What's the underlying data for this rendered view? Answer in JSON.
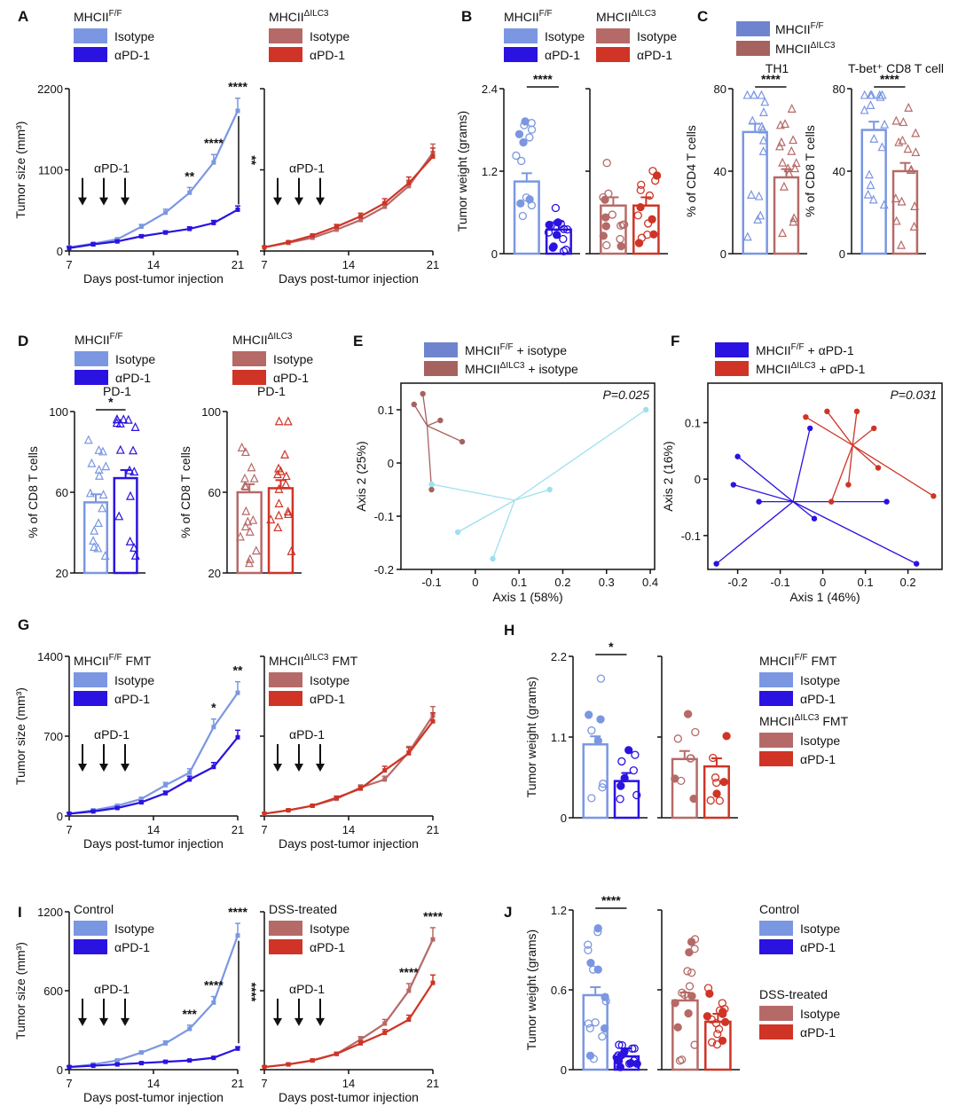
{
  "colors": {
    "fIso": "#7b97e2",
    "fPd": "#2a12e0",
    "iIso": "#b56a68",
    "iPd": "#cf3426",
    "cyan": "#9ee0f0",
    "fIsoC": "#6f84cf",
    "iIsoC": "#a6625f"
  },
  "legends": {
    "A1": {
      "title": "MHCII",
      "sup": "F/F",
      "items": [
        "Isotype",
        "αPD-1"
      ]
    },
    "A2": {
      "title": "MHCII",
      "sup": "ΔILC3",
      "items": [
        "Isotype",
        "αPD-1"
      ]
    },
    "B1": {
      "title": "MHCII",
      "sup": "F/F",
      "items": [
        "Isotype",
        "αPD-1"
      ]
    },
    "B2": {
      "title": "MHCII",
      "sup": "ΔILC3",
      "items": [
        "Isotype",
        "αPD-1"
      ]
    },
    "C": {
      "items": [
        "MHCII",
        "MHCII"
      ],
      "sups": [
        "F/F",
        "ΔILC3"
      ]
    },
    "D1": {
      "title": "MHCII",
      "sup": "F/F",
      "items": [
        "Isotype",
        "αPD-1"
      ]
    },
    "D2": {
      "title": "MHCII",
      "sup": "ΔILC3",
      "items": [
        "Isotype",
        "αPD-1"
      ]
    },
    "E": {
      "items": [
        "MHCII",
        "MHCII"
      ],
      "sups": [
        "F/F",
        "ΔILC3"
      ],
      "suffix": " + isotype"
    },
    "F": {
      "items": [
        "MHCII",
        "MHCII"
      ],
      "sups": [
        "F/F",
        "ΔILC3"
      ],
      "suffix": " + αPD-1"
    },
    "G1": {
      "title": "MHCII",
      "sup": "F/F",
      "post": " FMT",
      "items": [
        "Isotype",
        "αPD-1"
      ]
    },
    "G2": {
      "title": "MHCII",
      "sup": "ΔILC3",
      "post": " FMT",
      "items": [
        "Isotype",
        "αPD-1"
      ]
    },
    "H1": {
      "title": "MHCII",
      "sup": "F/F",
      "post": " FMT",
      "items": [
        "Isotype",
        "αPD-1"
      ]
    },
    "H2": {
      "title": "MHCII",
      "sup": "ΔILC3",
      "post": " FMT",
      "items": [
        "Isotype",
        "αPD-1"
      ]
    },
    "I1": {
      "title": "Control",
      "items": [
        "Isotype",
        "αPD-1"
      ]
    },
    "I2": {
      "title": "DSS-treated",
      "items": [
        "Isotype",
        "αPD-1"
      ]
    },
    "J1": {
      "title": "Control",
      "items": [
        "Isotype",
        "αPD-1"
      ]
    },
    "J2": {
      "title": "DSS-treated",
      "items": [
        "Isotype",
        "αPD-1"
      ]
    }
  },
  "chart_data": [
    {
      "panel": "A",
      "type": "line",
      "ylabel": "Tumor size (mm³)",
      "xlabel": "Days post-tumor injection",
      "ylim": [
        0,
        2200
      ],
      "yticks": [
        0,
        1100,
        2200
      ],
      "xticks": [
        7,
        14,
        21
      ],
      "arrow_label": "αPD-1",
      "subplots": [
        {
          "series": [
            {
              "name": "Isotype",
              "x": [
                7,
                9,
                11,
                13,
                15,
                17,
                19,
                21
              ],
              "y": [
                50,
                100,
                160,
                330,
                520,
                790,
                1200,
                1900
              ]
            },
            {
              "name": "αPD-1",
              "x": [
                7,
                9,
                11,
                13,
                15,
                17,
                19,
                21
              ],
              "y": [
                40,
                90,
                130,
                200,
                250,
                300,
                380,
                560
              ]
            }
          ],
          "stars": [
            {
              "x": 17,
              "text": "**"
            },
            {
              "x": 19,
              "text": "****"
            },
            {
              "x": 21,
              "text": "****"
            }
          ],
          "bracket": "**"
        },
        {
          "series": [
            {
              "name": "Isotype",
              "x": [
                7,
                9,
                11,
                13,
                15,
                17,
                19,
                21
              ],
              "y": [
                50,
                110,
                180,
                290,
                420,
                600,
                880,
                1330
              ]
            },
            {
              "name": "αPD-1",
              "x": [
                7,
                9,
                11,
                13,
                15,
                17,
                19,
                21
              ],
              "y": [
                50,
                120,
                210,
                330,
                470,
                650,
                920,
                1280
              ]
            }
          ]
        }
      ]
    },
    {
      "panel": "B",
      "type": "bar",
      "ylabel": "Tumor weight (grams)",
      "ylim": [
        0,
        2.4
      ],
      "yticks": [
        "0",
        "1.2",
        "2.4"
      ],
      "groups": [
        {
          "name": "Isotype",
          "mean": 1.05
        },
        {
          "name": "αPD-1",
          "mean": 0.35
        },
        {
          "name": "Isotype",
          "mean": 0.7
        },
        {
          "name": "αPD-1",
          "mean": 0.7
        }
      ],
      "stars": "****"
    },
    {
      "panel": "C",
      "type": "bar",
      "ylabel": [
        "% of CD4 T cells",
        "% of CD8 T cells"
      ],
      "subtitles": [
        "TH1",
        "T-bet⁺ CD8 T cell"
      ],
      "ylim": [
        0,
        80
      ],
      "yticks": [
        "0",
        "40",
        "80"
      ],
      "groups": [
        {
          "name": "MHCII F/F",
          "mean": [
            59,
            60
          ]
        },
        {
          "name": "MHCII ΔILC3",
          "mean": [
            37,
            40
          ]
        }
      ],
      "stars": "****"
    },
    {
      "panel": "D",
      "type": "bar",
      "ylabel": "% of CD8 T cells",
      "subtitle": "PD-1",
      "ylim": [
        20,
        100
      ],
      "yticks": [
        "20",
        "60",
        "100"
      ],
      "groups": [
        {
          "name": "Isotype",
          "mean": 55
        },
        {
          "name": "αPD-1",
          "mean": 67
        },
        {
          "name": "Isotype",
          "mean": 60
        },
        {
          "name": "αPD-1",
          "mean": 62
        }
      ],
      "stars": "*"
    },
    {
      "panel": "E",
      "type": "scatter",
      "xlabel": "Axis 1 (58%)",
      "ylabel": "Axis 2 (25%)",
      "xticks": [
        "-0.1",
        "0",
        "0.1",
        "0.2",
        "0.3",
        "0.4"
      ],
      "yticks": [
        "-0.2",
        "-0.1",
        "0",
        "0.1"
      ],
      "p": "P=0.025"
    },
    {
      "panel": "F",
      "type": "scatter",
      "xlabel": "Axis 1 (46%)",
      "ylabel": "Axis 2 (16%)",
      "xticks": [
        "-0.2",
        "-0.1",
        "0",
        "0.1",
        "0.2"
      ],
      "yticks": [
        "-0.1",
        "0",
        "0.1"
      ],
      "p": "P=0.031"
    },
    {
      "panel": "G",
      "type": "line",
      "ylabel": "Tumor size (mm³)",
      "xlabel": "Days post-tumor injection",
      "ylim": [
        0,
        1400
      ],
      "yticks": [
        0,
        700,
        1400
      ],
      "xticks": [
        7,
        14,
        21
      ],
      "arrow_label": "αPD-1",
      "subplots": [
        {
          "series": [
            {
              "name": "Isotype",
              "x": [
                7,
                9,
                11,
                13,
                15,
                17,
                19,
                21
              ],
              "y": [
                20,
                50,
                90,
                150,
                270,
                380,
                780,
                1080
              ]
            },
            {
              "name": "αPD-1",
              "x": [
                7,
                9,
                11,
                13,
                15,
                17,
                19,
                21
              ],
              "y": [
                20,
                40,
                70,
                120,
                200,
                320,
                430,
                690
              ]
            }
          ],
          "stars": [
            {
              "x": 19,
              "text": "*"
            },
            {
              "x": 21,
              "text": "**"
            }
          ]
        },
        {
          "series": [
            {
              "name": "Isotype",
              "x": [
                7,
                9,
                11,
                13,
                15,
                17,
                19,
                21
              ],
              "y": [
                20,
                50,
                90,
                150,
                250,
                320,
                560,
                880
              ]
            },
            {
              "name": "αPD-1",
              "x": [
                7,
                9,
                11,
                13,
                15,
                17,
                19,
                21
              ],
              "y": [
                20,
                50,
                90,
                160,
                240,
                400,
                550,
                830
              ]
            }
          ]
        }
      ]
    },
    {
      "panel": "H",
      "type": "bar",
      "ylabel": "Tumor weight (grams)",
      "ylim": [
        0,
        2.2
      ],
      "yticks": [
        "0",
        "1.1",
        "2.2"
      ],
      "groups": [
        {
          "name": "Isotype",
          "mean": 1.0
        },
        {
          "name": "αPD-1",
          "mean": 0.5
        },
        {
          "name": "Isotype",
          "mean": 0.8
        },
        {
          "name": "αPD-1",
          "mean": 0.7
        }
      ],
      "stars": "*"
    },
    {
      "panel": "I",
      "type": "line",
      "ylabel": "Tumor size (mm³)",
      "xlabel": "Days post-tumor injection",
      "ylim": [
        0,
        1200
      ],
      "yticks": [
        0,
        600,
        1200
      ],
      "xticks": [
        7,
        14,
        21
      ],
      "arrow_label": "αPD-1",
      "subplots": [
        {
          "series": [
            {
              "name": "Isotype",
              "x": [
                7,
                9,
                11,
                13,
                15,
                17,
                19,
                21
              ],
              "y": [
                20,
                40,
                70,
                130,
                200,
                310,
                510,
                1020
              ]
            },
            {
              "name": "αPD-1",
              "x": [
                7,
                9,
                11,
                13,
                15,
                17,
                19,
                21
              ],
              "y": [
                20,
                30,
                40,
                50,
                60,
                70,
                90,
                160
              ]
            }
          ],
          "stars": [
            {
              "x": 17,
              "text": "***"
            },
            {
              "x": 19,
              "text": "****"
            },
            {
              "x": 21,
              "text": "****"
            }
          ],
          "bracket": "****"
        },
        {
          "series": [
            {
              "name": "Isotype",
              "x": [
                7,
                9,
                11,
                13,
                15,
                17,
                19,
                21
              ],
              "y": [
                20,
                40,
                70,
                120,
                230,
                350,
                600,
                990
              ]
            },
            {
              "name": "αPD-1",
              "x": [
                7,
                9,
                11,
                13,
                15,
                17,
                19,
                21
              ],
              "y": [
                20,
                40,
                70,
                120,
                200,
                280,
                380,
                660
              ]
            }
          ],
          "stars": [
            {
              "x": 19,
              "text": "****"
            },
            {
              "x": 21,
              "text": "****"
            }
          ]
        }
      ]
    },
    {
      "panel": "J",
      "type": "bar",
      "ylabel": "Tumor weight (grams)",
      "ylim": [
        0,
        1.2
      ],
      "yticks": [
        "0",
        "0.6",
        "1.2"
      ],
      "groups": [
        {
          "name": "Isotype",
          "mean": 0.56
        },
        {
          "name": "αPD-1",
          "mean": 0.1
        },
        {
          "name": "Isotype",
          "mean": 0.52
        },
        {
          "name": "αPD-1",
          "mean": 0.36
        }
      ],
      "stars": "****"
    }
  ]
}
